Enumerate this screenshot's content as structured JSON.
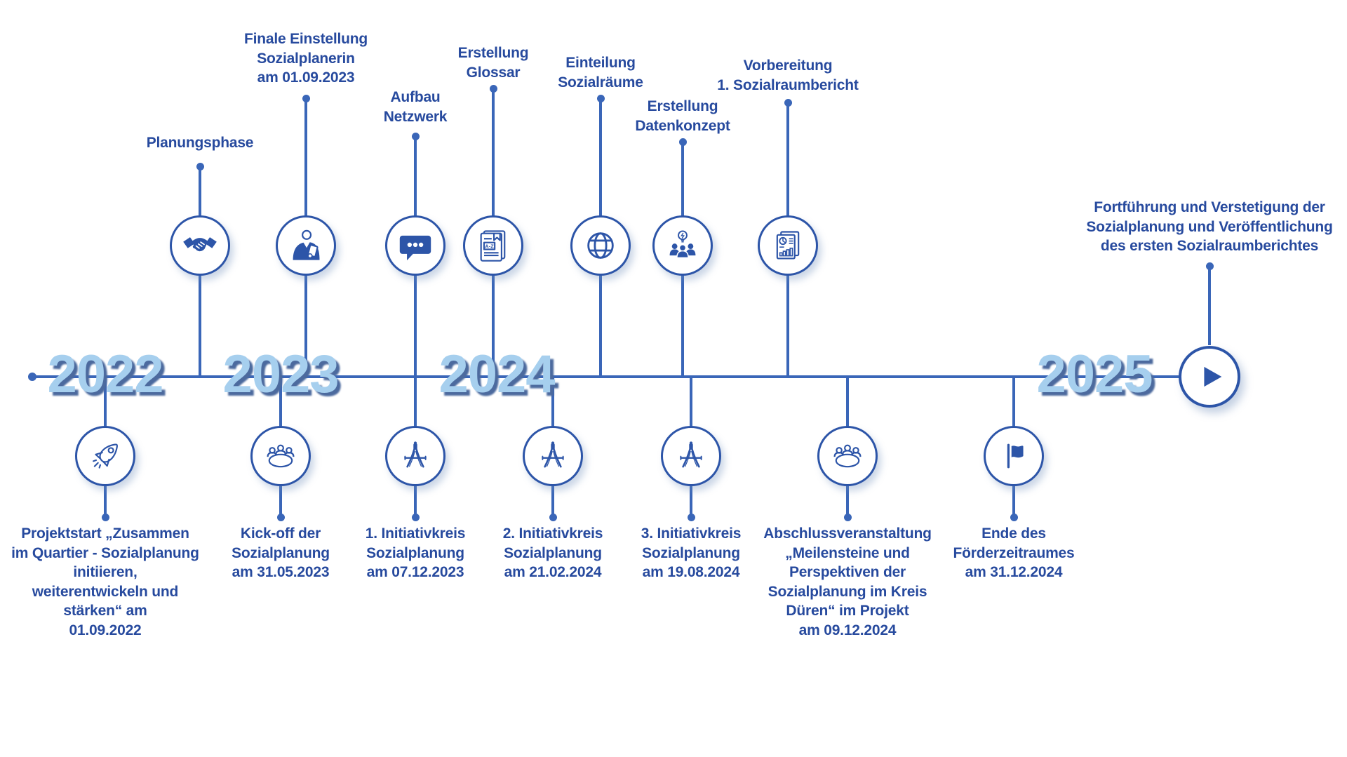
{
  "colors": {
    "ink": "#274a9e",
    "line": "#3a66b8",
    "icon": "#2d55a8",
    "year_fill": "#a6cfee",
    "year_shadow": "#4c6a9e",
    "background": "#ffffff"
  },
  "years": [
    "2022",
    "2023",
    "2024",
    "2025"
  ],
  "events_top": [
    {
      "label": "Planungsphase",
      "icon": "handshake-icon"
    },
    {
      "label": "Finale Einstellung\nSozialplanerin\nam 01.09.2023",
      "icon": "social-planner-icon"
    },
    {
      "label": "Aufbau\nNetzwerk",
      "icon": "speech-bubble-icon"
    },
    {
      "label": "Erstellung\nGlossar",
      "icon": "glossary-book-icon"
    },
    {
      "label": "Einteilung\nSozialräume",
      "icon": "globe-icon"
    },
    {
      "label": "Erstellung\nDatenkonzept",
      "icon": "team-idea-icon"
    },
    {
      "label": "Vorbereitung\n1. Sozialraumbericht",
      "icon": "report-icon"
    },
    {
      "label": "Fortführung und Verstetigung der\nSozialplanung und Veröffentlichung\ndes ersten Sozialraumberichtes",
      "icon": ""
    }
  ],
  "events_bottom": [
    {
      "label": "Projektstart „Zusammen\nim Quartier - Sozialplanung\ninitiieren,\nweiterentwickeln und\nstärken“ am\n01.09.2022",
      "icon": "rocket-icon"
    },
    {
      "label": "Kick-off der\nSozialplanung\nam 31.05.2023",
      "icon": "round-table-icon"
    },
    {
      "label": "1. Initiativkreis\nSozialplanung\nam 07.12.2023",
      "icon": "compass-icon"
    },
    {
      "label": "2. Initiativkreis\nSozialplanung\nam 21.02.2024",
      "icon": "compass-icon"
    },
    {
      "label": "3. Initiativkreis\nSozialplanung\nam 19.08.2024",
      "icon": "compass-icon"
    },
    {
      "label": "Abschlussveranstaltung\n„Meilensteine und\nPerspektiven der\nSozialplanung im Kreis\nDüren“ im Projekt\nam 09.12.2024",
      "icon": "round-table-icon"
    },
    {
      "label": "Ende des\nFörderzeitraumes\nam 31.12.2024",
      "icon": "flag-icon"
    }
  ],
  "play": {
    "icon": "play-icon"
  }
}
